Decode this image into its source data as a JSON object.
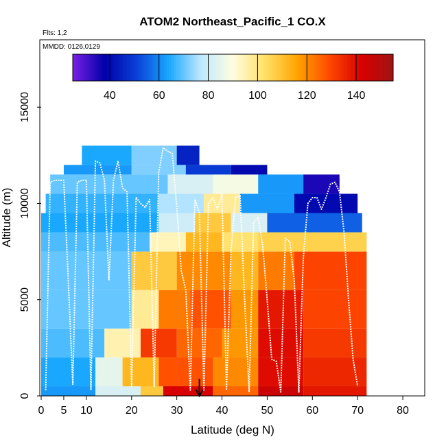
{
  "chart_data": {
    "type": "heatmap",
    "title": "ATOM2 Northeast_Pacific_1 CO.X",
    "annotations": [
      "Flts: 1,2",
      "MMDD: 0126,0129"
    ],
    "xlabel": "Latitude (deg N)",
    "ylabel": "Altitude (m)",
    "xlim": [
      0,
      85
    ],
    "ylim": [
      0,
      18500
    ],
    "x_ticks": [
      0,
      5,
      10,
      20,
      30,
      40,
      50,
      60,
      70,
      80
    ],
    "y_ticks": [
      0,
      5000,
      10000,
      15000
    ],
    "colorbar": {
      "range": [
        25,
        155
      ],
      "ticks": [
        40,
        60,
        80,
        100,
        120,
        140
      ],
      "colors": [
        "#7a1fe6",
        "#0000a8",
        "#0a40d8",
        "#1aa8ff",
        "#bfe8ff",
        "#fffde0",
        "#ffe066",
        "#ffa500",
        "#ff4a00",
        "#d80000",
        "#a01414"
      ]
    },
    "heatmap_bands": [
      {
        "alt": [
          0,
          500
        ],
        "segments": [
          {
            "lat": [
              0,
              12
            ],
            "value": 62
          },
          {
            "lat": [
              12,
              22
            ],
            "value": 82
          },
          {
            "lat": [
              22,
              27
            ],
            "value": 108
          },
          {
            "lat": [
              27,
              38
            ],
            "value": 142
          },
          {
            "lat": [
              38,
              48
            ],
            "value": 125
          },
          {
            "lat": [
              48,
              58
            ],
            "value": 145
          },
          {
            "lat": [
              58,
              72
            ],
            "value": 138
          }
        ]
      },
      {
        "alt": [
          500,
          2000
        ],
        "segments": [
          {
            "lat": [
              0,
              12
            ],
            "value": 64
          },
          {
            "lat": [
              12,
              18
            ],
            "value": 85
          },
          {
            "lat": [
              18,
              26
            ],
            "value": 112
          },
          {
            "lat": [
              26,
              38
            ],
            "value": 128
          },
          {
            "lat": [
              38,
              48
            ],
            "value": 120
          },
          {
            "lat": [
              48,
              58
            ],
            "value": 140
          },
          {
            "lat": [
              58,
              72
            ],
            "value": 135
          }
        ]
      },
      {
        "alt": [
          2000,
          3500
        ],
        "segments": [
          {
            "lat": [
              0,
              14
            ],
            "value": 68
          },
          {
            "lat": [
              14,
              22
            ],
            "value": 95
          },
          {
            "lat": [
              22,
              30
            ],
            "value": 132
          },
          {
            "lat": [
              30,
              40
            ],
            "value": 125
          },
          {
            "lat": [
              40,
              48
            ],
            "value": 118
          },
          {
            "lat": [
              48,
              58
            ],
            "value": 140
          },
          {
            "lat": [
              58,
              72
            ],
            "value": 132
          }
        ]
      },
      {
        "alt": [
          3500,
          5500
        ],
        "segments": [
          {
            "lat": [
              0,
              20
            ],
            "value": 70
          },
          {
            "lat": [
              20,
              26
            ],
            "value": 98
          },
          {
            "lat": [
              26,
              33
            ],
            "value": 122
          },
          {
            "lat": [
              33,
              42
            ],
            "value": 128
          },
          {
            "lat": [
              42,
              48
            ],
            "value": 118
          },
          {
            "lat": [
              48,
              58
            ],
            "value": 138
          },
          {
            "lat": [
              58,
              72
            ],
            "value": 130
          }
        ]
      },
      {
        "alt": [
          5500,
          7500
        ],
        "segments": [
          {
            "lat": [
              0,
              20
            ],
            "value": 70
          },
          {
            "lat": [
              20,
              30
            ],
            "value": 108
          },
          {
            "lat": [
              30,
              42
            ],
            "value": 120
          },
          {
            "lat": [
              42,
              48
            ],
            "value": 112
          },
          {
            "lat": [
              48,
              56
            ],
            "value": 122
          },
          {
            "lat": [
              56,
              72
            ],
            "value": 130
          }
        ]
      },
      {
        "alt": [
          7500,
          8500
        ],
        "segments": [
          {
            "lat": [
              0,
              24
            ],
            "value": 68
          },
          {
            "lat": [
              24,
              32
            ],
            "value": 94
          },
          {
            "lat": [
              32,
              40
            ],
            "value": 112
          },
          {
            "lat": [
              40,
              48
            ],
            "value": 102
          },
          {
            "lat": [
              48,
              72
            ],
            "value": 106
          }
        ]
      },
      {
        "alt": [
          8500,
          9500
        ],
        "segments": [
          {
            "lat": [
              0,
              26
            ],
            "value": 64
          },
          {
            "lat": [
              26,
              34
            ],
            "value": 80
          },
          {
            "lat": [
              34,
              42
            ],
            "value": 108
          },
          {
            "lat": [
              42,
              50
            ],
            "value": 82
          },
          {
            "lat": [
              50,
              71
            ],
            "value": 55
          }
        ]
      },
      {
        "alt": [
          9500,
          10500
        ],
        "segments": [
          {
            "lat": [
              1,
              26
            ],
            "value": 66
          },
          {
            "lat": [
              26,
              36
            ],
            "value": 76
          },
          {
            "lat": [
              36,
              44
            ],
            "value": 98
          },
          {
            "lat": [
              44,
              56
            ],
            "value": 62
          },
          {
            "lat": [
              56,
              70
            ],
            "value": 40
          }
        ]
      },
      {
        "alt": [
          10500,
          11500
        ],
        "segments": [
          {
            "lat": [
              2,
              28
            ],
            "value": 70
          },
          {
            "lat": [
              28,
              38
            ],
            "value": 82
          },
          {
            "lat": [
              38,
              48
            ],
            "value": 88
          },
          {
            "lat": [
              48,
              58
            ],
            "value": 62
          },
          {
            "lat": [
              58,
              66
            ],
            "value": 35
          }
        ]
      },
      {
        "alt": [
          11500,
          12000
        ],
        "segments": [
          {
            "lat": [
              5,
              20
            ],
            "value": 62
          },
          {
            "lat": [
              20,
              32
            ],
            "value": 72
          },
          {
            "lat": [
              32,
              42
            ],
            "value": 50
          },
          {
            "lat": [
              42,
              50
            ],
            "value": 40
          }
        ]
      },
      {
        "alt": [
          12000,
          13000
        ],
        "segments": [
          {
            "lat": [
              9,
              20
            ],
            "value": 64
          },
          {
            "lat": [
              20,
              30
            ],
            "value": 72
          },
          {
            "lat": [
              30,
              35
            ],
            "value": 45
          }
        ]
      }
    ],
    "flight_track": {
      "x": [
        1,
        2,
        3,
        5,
        6,
        7,
        8,
        9,
        10,
        11,
        12,
        13,
        14,
        15,
        16,
        17,
        18,
        19,
        20,
        21,
        22,
        23,
        24,
        25,
        26,
        27,
        28,
        29,
        30,
        31,
        32,
        33,
        34,
        35,
        36,
        37,
        38,
        39,
        40,
        41,
        42,
        43,
        44,
        45,
        46,
        47,
        48,
        49,
        50,
        51,
        52,
        53,
        54,
        55,
        56,
        57,
        58,
        59,
        60,
        61,
        62,
        63,
        64,
        65,
        66,
        67,
        68,
        69,
        70
      ],
      "y": [
        300,
        11100,
        11200,
        11200,
        6000,
        600,
        11100,
        11200,
        11200,
        300,
        12200,
        12100,
        11200,
        6000,
        11200,
        12200,
        10800,
        10600,
        500,
        10300,
        10000,
        9800,
        10200,
        500,
        11600,
        12900,
        12700,
        12600,
        9800,
        6500,
        5500,
        300,
        10200,
        9500,
        300,
        10000,
        10300,
        9700,
        10500,
        300,
        7500,
        10300,
        10400,
        5000,
        200,
        9000,
        9300,
        7800,
        5000,
        1900,
        1800,
        200,
        8200,
        8000,
        6000,
        200,
        7200,
        10000,
        10300,
        10300,
        9700,
        10300,
        11000,
        11100,
        10600,
        8500,
        5000,
        1900,
        500
      ]
    },
    "marker": {
      "lat": 35,
      "label": "arrow"
    }
  }
}
